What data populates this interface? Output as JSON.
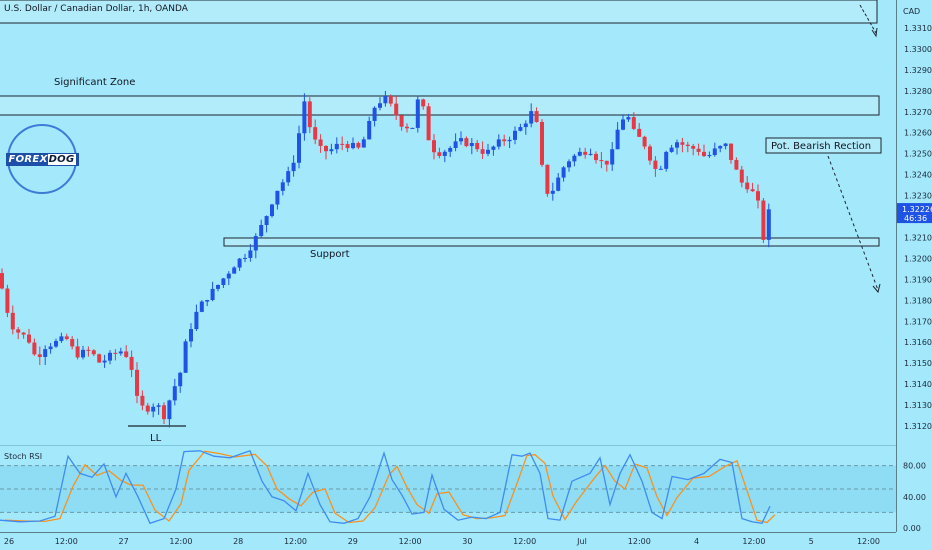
{
  "header": {
    "title": "U.S. Dollar / Canadian Dollar, 1h, OANDA",
    "currency": "CAD"
  },
  "logo": {
    "text_a": "FOREX",
    "text_b": "DOG"
  },
  "price_axis": {
    "ticks": [
      "1.33100",
      "1.33000",
      "1.32900",
      "1.32800",
      "1.32700",
      "1.32600",
      "1.32500",
      "1.32400",
      "1.32300",
      "1.32100",
      "1.32000",
      "1.31900",
      "1.31800",
      "1.31700",
      "1.31600",
      "1.31500",
      "1.31400",
      "1.31300",
      "1.31200"
    ],
    "last_price": "1.32226",
    "countdown": "46:36"
  },
  "time_axis": {
    "labels": [
      "26",
      "12:00",
      "27",
      "12:00",
      "28",
      "12:00",
      "29",
      "12:00",
      "30",
      "12:00",
      "Jul",
      "12:00",
      "4",
      "12:00",
      "5",
      "12:00"
    ]
  },
  "annotations": {
    "significant_zone": "Significant Zone",
    "support": "Support",
    "ll": "LL",
    "pot_bearish": "Pot. Bearish Rection"
  },
  "rsi": {
    "title": "Stoch RSI",
    "ticks": [
      "80.00",
      "40.00",
      "0.00"
    ]
  },
  "colors": {
    "background": "#a3e8fb",
    "bull": "#1e53e5",
    "bear": "#e63946",
    "zone_fill": "#b2ebfa",
    "rsi_k": "#3f8cf0",
    "rsi_d": "#f7931e"
  },
  "chart_data": {
    "type": "candlestick",
    "symbol": "USDCAD",
    "timeframe": "1h",
    "ylim": [
      1.3115,
      1.332
    ],
    "zones": [
      {
        "label": "Significant Zone",
        "from": 1.3268,
        "to": 1.3278
      },
      {
        "label": "Support",
        "from": 1.3205,
        "to": 1.3208
      }
    ],
    "last": 1.32226,
    "stoch_rsi": {
      "ylim": [
        0,
        100
      ],
      "bands": [
        20,
        50,
        80
      ]
    }
  }
}
